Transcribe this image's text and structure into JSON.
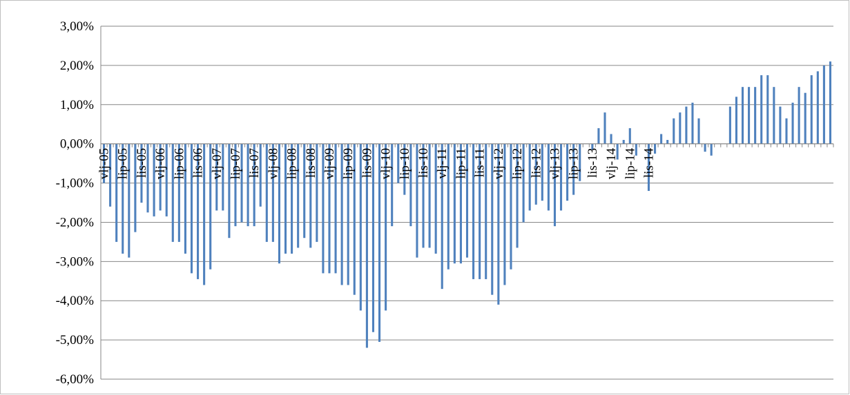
{
  "chart_data": {
    "type": "bar",
    "title": "",
    "xlabel": "",
    "ylabel": "",
    "ylim": [
      -6,
      3
    ],
    "yticks": [
      3,
      2,
      1,
      0,
      -1,
      -2,
      -3,
      -4,
      -5,
      -6
    ],
    "ytick_labels": [
      "3,00%",
      "2,00%",
      "1,00%",
      "0,00%",
      "-1,00%",
      "-2,00%",
      "-3,00%",
      "-4,00%",
      "-5,00%",
      "-6,00%"
    ],
    "grid": true,
    "legend": "none",
    "bar_color": "#4f81bd",
    "label_every": 3,
    "category_labels": [
      "vlj-05",
      "lip-05",
      "lis-05",
      "vlj-06",
      "lip-06",
      "lis-06",
      "vlj-07",
      "lip-07",
      "lis-07",
      "vlj-08",
      "lip-08",
      "lis-08",
      "vlj-09",
      "lip-09",
      "lis-09",
      "vlj-10",
      "lip-10",
      "lis-10",
      "vlj-11",
      "lip-11",
      "lis-11",
      "vlj-12",
      "lip-12",
      "lis-12",
      "vlj-13",
      "lip-13",
      "lis-13",
      "vlj-14",
      "lip-14",
      "lis-14"
    ],
    "values": [
      -1.0,
      -1.6,
      -2.5,
      -2.8,
      -2.9,
      -2.25,
      -1.5,
      -1.75,
      -1.85,
      -1.7,
      -1.85,
      -2.5,
      -2.5,
      -2.8,
      -3.3,
      -3.45,
      -3.6,
      -3.2,
      -1.7,
      -1.7,
      -2.4,
      -2.1,
      -2.0,
      -2.1,
      -2.1,
      -1.6,
      -2.5,
      -2.5,
      -3.05,
      -2.8,
      -2.8,
      -2.65,
      -2.4,
      -2.65,
      -2.5,
      -3.3,
      -3.3,
      -3.3,
      -3.6,
      -3.6,
      -3.85,
      -4.25,
      -5.2,
      -4.8,
      -5.05,
      -4.25,
      -2.1,
      -1.0,
      -1.3,
      -2.1,
      -2.9,
      -2.65,
      -2.65,
      -2.8,
      -3.7,
      -3.2,
      -3.05,
      -3.05,
      -2.9,
      -3.45,
      -3.45,
      -3.45,
      -3.85,
      -4.1,
      -3.6,
      -3.2,
      -2.65,
      -2.0,
      -1.7,
      -1.55,
      -1.45,
      -1.7,
      -2.1,
      -1.7,
      -1.45,
      -1.3,
      -0.95,
      0.0,
      -0.15,
      0.4,
      0.8,
      0.25,
      -0.4,
      0.1,
      0.4,
      -0.3,
      0.0,
      -1.2,
      -0.25,
      0.25,
      0.1,
      0.65,
      0.8,
      0.95,
      1.05,
      0.65,
      -0.2,
      -0.3,
      0.0,
      0.0,
      0.95,
      1.2,
      1.45,
      1.45,
      1.45,
      1.75,
      1.75,
      1.45,
      0.95,
      0.65,
      1.05,
      1.45,
      1.3,
      1.75,
      1.85,
      2.0,
      2.1
    ]
  }
}
